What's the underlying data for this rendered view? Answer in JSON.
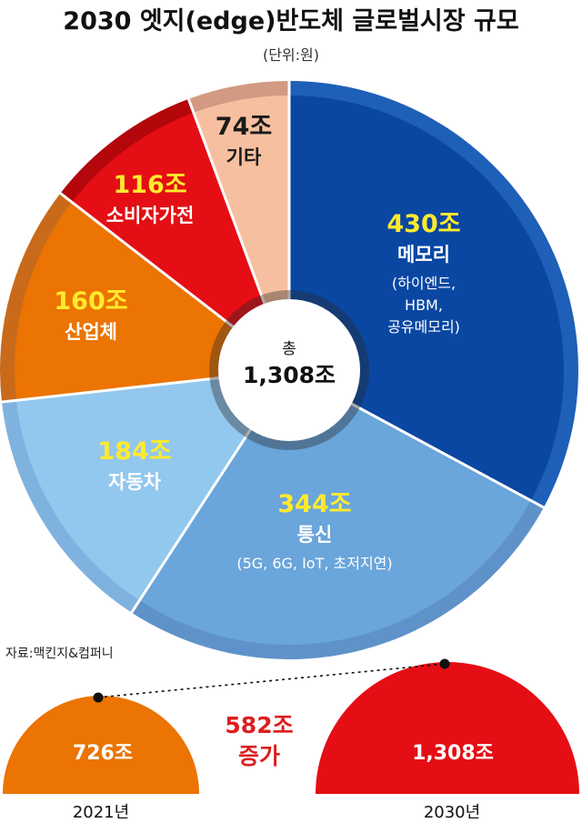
{
  "chart_data": [
    {
      "type": "pie",
      "title": "2030 엣지(edge)반도체 글로벌시장 규모",
      "unit_note": "(단위:원)",
      "center": {
        "label": "총",
        "value_label": "1,308조",
        "value": 1308
      },
      "slices": [
        {
          "value": 430,
          "value_label": "430조",
          "name": "메모리",
          "details": [
            "(하이엔드,",
            "HBM,",
            "공유메모리)"
          ],
          "color": "#0a47a3",
          "rim_color": "#1e5fb8",
          "value_color": "#ffea2e",
          "text_color": "#ffffff"
        },
        {
          "value": 344,
          "value_label": "344조",
          "name": "통신",
          "details": [
            "(5G, 6G, IoT, 초저지연)"
          ],
          "color": "#6aa5db",
          "rim_color": "#5f92c9",
          "value_color": "#ffea2e",
          "text_color": "#ffffff"
        },
        {
          "value": 184,
          "value_label": "184조",
          "name": "자동차",
          "details": [],
          "color": "#92c7ee",
          "rim_color": "#7fb2df",
          "value_color": "#ffea2e",
          "text_color": "#ffffff"
        },
        {
          "value": 160,
          "value_label": "160조",
          "name": "산업체",
          "details": [],
          "color": "#eb7402",
          "rim_color": "#c86a1a",
          "value_color": "#ffea2e",
          "text_color": "#ffffff"
        },
        {
          "value": 116,
          "value_label": "116조",
          "name": "소비자가전",
          "details": [],
          "color": "#e40e14",
          "rim_color": "#b3070c",
          "value_color": "#ffea2e",
          "text_color": "#ffffff"
        },
        {
          "value": 74,
          "value_label": "74조",
          "name": "기타",
          "details": [],
          "color": "#f6c0a0",
          "rim_color": "#d29a82",
          "value_color": "#1a1a1a",
          "text_color": "#1a1a1a"
        }
      ]
    },
    {
      "type": "bar",
      "source": "자료:맥킨지&컴퍼니",
      "categories": [
        "2021년",
        "2030년"
      ],
      "values": [
        726,
        1308
      ],
      "value_labels": [
        "726조",
        "1,308조"
      ],
      "colors": [
        "#eb7402",
        "#e40e14"
      ],
      "increase_label": [
        "582조",
        "증가"
      ],
      "increase_color": "#dc1e1e"
    }
  ]
}
